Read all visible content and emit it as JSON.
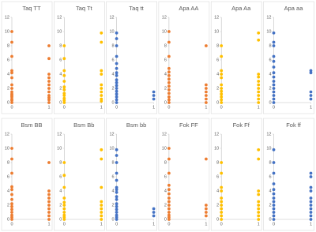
{
  "chart_data": [
    {
      "type": "scatter",
      "title": "Taq TT",
      "color": "#ed7d31",
      "xlim": [
        0,
        1
      ],
      "xticks": [
        0,
        1
      ],
      "ylim": [
        0,
        12
      ],
      "yticks": [
        0,
        2,
        4,
        6,
        8,
        10,
        12
      ],
      "x": [
        0,
        0,
        0,
        0,
        0,
        0,
        0,
        0,
        0,
        0,
        0,
        0,
        0,
        0,
        0,
        1,
        1,
        1,
        1,
        1,
        1,
        1,
        1,
        1,
        1,
        1,
        1
      ],
      "values": [
        10,
        8.5,
        6.5,
        4.5,
        4.2,
        3.5,
        2.5,
        2,
        1.5,
        1.2,
        1,
        0.8,
        0.5,
        0.3,
        0,
        8,
        6.2,
        4,
        3.5,
        3,
        2.5,
        2,
        1.5,
        1,
        0.7,
        0.4,
        0
      ]
    },
    {
      "type": "scatter",
      "title": "Taq Tt",
      "color": "#ffc000",
      "xlim": [
        0,
        1
      ],
      "xticks": [
        0,
        1
      ],
      "ylim": [
        0,
        12
      ],
      "yticks": [
        0,
        2,
        4,
        6,
        8,
        10,
        12
      ],
      "x": [
        0,
        0,
        0,
        0,
        0,
        0,
        0,
        0,
        0,
        0,
        0,
        0,
        1,
        1,
        1,
        1,
        1,
        1,
        1,
        1,
        1,
        1
      ],
      "values": [
        8,
        6.2,
        4.5,
        3.8,
        3,
        2.2,
        1.8,
        1.3,
        1,
        0.6,
        0.3,
        0,
        9.8,
        8.5,
        4.5,
        4,
        2.5,
        2,
        1.5,
        1,
        0.5,
        0.2
      ]
    },
    {
      "type": "scatter",
      "title": "Taq tt",
      "color": "#4472c4",
      "xlim": [
        0,
        1
      ],
      "xticks": [
        0,
        1
      ],
      "ylim": [
        0,
        12
      ],
      "yticks": [
        0,
        2,
        4,
        6,
        8,
        10,
        12
      ],
      "x": [
        0,
        0,
        0,
        0,
        0,
        0,
        0,
        0,
        0,
        0,
        0,
        0,
        0,
        0,
        0,
        0,
        0,
        1,
        1,
        1
      ],
      "values": [
        9.8,
        9,
        8,
        6.5,
        5.5,
        4.8,
        4.2,
        3.8,
        3.2,
        2.8,
        2.4,
        2,
        1.6,
        1.2,
        0.8,
        0.4,
        0,
        1.5,
        1,
        0.5
      ]
    },
    {
      "type": "scatter",
      "title": "Apa AA",
      "color": "#ed7d31",
      "xlim": [
        0,
        1
      ],
      "xticks": [
        0,
        1
      ],
      "ylim": [
        0,
        12
      ],
      "yticks": [
        0,
        2,
        4,
        6,
        8,
        10,
        12
      ],
      "x": [
        0,
        0,
        0,
        0,
        0,
        0,
        0,
        0,
        0,
        0,
        0,
        0,
        0,
        0,
        1,
        1,
        1,
        1,
        1,
        1,
        1
      ],
      "values": [
        10,
        8.5,
        6.5,
        4.8,
        4.3,
        3.8,
        3.3,
        2.8,
        2.3,
        1.8,
        1.3,
        0.8,
        0.4,
        0,
        8,
        2.5,
        2,
        1.5,
        1,
        0.5,
        0
      ]
    },
    {
      "type": "scatter",
      "title": "Apa Aa",
      "color": "#ffc000",
      "xlim": [
        0,
        1
      ],
      "xticks": [
        0,
        1
      ],
      "ylim": [
        0,
        12
      ],
      "yticks": [
        0,
        2,
        4,
        6,
        8,
        10,
        12
      ],
      "x": [
        0,
        0,
        0,
        0,
        0,
        0,
        0,
        0,
        0,
        0,
        0,
        0,
        1,
        1,
        1,
        1,
        1,
        1,
        1,
        1,
        1,
        1,
        1
      ],
      "values": [
        8,
        6.5,
        4.5,
        4,
        3.5,
        2.5,
        2,
        1.6,
        1.2,
        0.8,
        0.4,
        0,
        9.8,
        8.8,
        4,
        3.6,
        3,
        2.5,
        2,
        1.5,
        1,
        0.5,
        0
      ]
    },
    {
      "type": "scatter",
      "title": "Apa aa",
      "color": "#4472c4",
      "xlim": [
        0,
        1
      ],
      "xticks": [
        0,
        1
      ],
      "ylim": [
        0,
        12
      ],
      "yticks": [
        0,
        2,
        4,
        6,
        8,
        10,
        12
      ],
      "x": [
        0,
        0,
        0,
        0,
        0,
        0,
        0,
        0,
        0,
        0,
        0,
        0,
        0,
        0,
        0,
        1,
        1,
        1,
        1,
        1
      ],
      "values": [
        9.8,
        8.5,
        8,
        6.5,
        5.8,
        5,
        4.2,
        3.6,
        3,
        2.5,
        2,
        1.5,
        1,
        0.5,
        0,
        4.5,
        4.2,
        1.5,
        1,
        0.5
      ]
    },
    {
      "type": "scatter",
      "title": "Bsm BB",
      "color": "#ed7d31",
      "xlim": [
        0,
        1
      ],
      "xticks": [
        0,
        1
      ],
      "ylim": [
        0,
        12
      ],
      "yticks": [
        0,
        2,
        4,
        6,
        8,
        10,
        12
      ],
      "x": [
        0,
        0,
        0,
        0,
        0,
        0,
        0,
        0,
        0,
        0,
        0,
        0,
        0,
        0,
        1,
        1,
        1,
        1,
        1,
        1,
        1,
        1,
        1,
        1
      ],
      "values": [
        10,
        8.5,
        6.5,
        4.6,
        4.2,
        3.5,
        2.8,
        2.2,
        1.8,
        1.4,
        1,
        0.6,
        0.3,
        0,
        8,
        4,
        3.5,
        3,
        2.5,
        2,
        1.5,
        1,
        0.5,
        0
      ]
    },
    {
      "type": "scatter",
      "title": "Bsm Bb",
      "color": "#ffc000",
      "xlim": [
        0,
        1
      ],
      "xticks": [
        0,
        1
      ],
      "ylim": [
        0,
        12
      ],
      "yticks": [
        0,
        2,
        4,
        6,
        8,
        10,
        12
      ],
      "x": [
        0,
        0,
        0,
        0,
        0,
        0,
        0,
        0,
        0,
        0,
        0,
        1,
        1,
        1,
        1,
        1,
        1,
        1,
        1,
        1
      ],
      "values": [
        8,
        6.2,
        4.5,
        3,
        2.4,
        2,
        1.5,
        1,
        0.6,
        0.3,
        0,
        9.8,
        8.5,
        4.5,
        2.5,
        2,
        1.5,
        1,
        0.5,
        0
      ]
    },
    {
      "type": "scatter",
      "title": "Bsm bb",
      "color": "#4472c4",
      "xlim": [
        0,
        1
      ],
      "xticks": [
        0,
        1
      ],
      "ylim": [
        0,
        12
      ],
      "yticks": [
        0,
        2,
        4,
        6,
        8,
        10,
        12
      ],
      "x": [
        0,
        0,
        0,
        0,
        0,
        0,
        0,
        0,
        0,
        0,
        0,
        0,
        0,
        0,
        0,
        0,
        0,
        1,
        1,
        1
      ],
      "values": [
        9.8,
        9,
        8,
        6.5,
        5.5,
        4.5,
        4.2,
        3.8,
        3.2,
        2.8,
        2.2,
        1.8,
        1.4,
        1,
        0.6,
        0.3,
        0,
        1.5,
        1,
        0.5
      ]
    },
    {
      "type": "scatter",
      "title": "Fok FF",
      "color": "#ed7d31",
      "xlim": [
        0,
        1
      ],
      "xticks": [
        0,
        1
      ],
      "ylim": [
        0,
        12
      ],
      "yticks": [
        0,
        2,
        4,
        6,
        8,
        10,
        12
      ],
      "x": [
        0,
        0,
        0,
        0,
        0,
        0,
        0,
        0,
        0,
        0,
        0,
        0,
        0,
        0,
        1,
        1,
        1,
        1,
        1
      ],
      "values": [
        10,
        8.5,
        6.5,
        4.8,
        4.2,
        3.6,
        3,
        2.5,
        2,
        1.5,
        1,
        0.6,
        0.3,
        0,
        8.5,
        2,
        1.5,
        1,
        0.5
      ]
    },
    {
      "type": "scatter",
      "title": "Fok Ff",
      "color": "#ffc000",
      "xlim": [
        0,
        1
      ],
      "xticks": [
        0,
        1
      ],
      "ylim": [
        0,
        12
      ],
      "yticks": [
        0,
        2,
        4,
        6,
        8,
        10,
        12
      ],
      "x": [
        0,
        0,
        0,
        0,
        0,
        0,
        0,
        0,
        0,
        0,
        0,
        1,
        1,
        1,
        1,
        1,
        1,
        1,
        1,
        1,
        1
      ],
      "values": [
        8,
        6.5,
        4.5,
        4,
        3,
        2.5,
        2,
        1.5,
        1,
        0.5,
        0,
        9.8,
        8.5,
        4,
        3.5,
        2.5,
        2,
        1.5,
        1,
        0.5,
        0
      ]
    },
    {
      "type": "scatter",
      "title": "Fok ff",
      "color": "#4472c4",
      "xlim": [
        0,
        1
      ],
      "xticks": [
        0,
        1
      ],
      "ylim": [
        0,
        12
      ],
      "yticks": [
        0,
        2,
        4,
        6,
        8,
        10,
        12
      ],
      "x": [
        0,
        0,
        0,
        0,
        0,
        0,
        0,
        0,
        0,
        0,
        0,
        0,
        0,
        1,
        1,
        1,
        1,
        1,
        1,
        1,
        1,
        1,
        1,
        1
      ],
      "values": [
        9.8,
        8,
        6.5,
        5,
        4.2,
        3.6,
        3,
        2.5,
        2,
        1.5,
        1,
        0.5,
        0,
        6.5,
        6,
        4.5,
        4,
        3,
        2.5,
        2,
        1.5,
        1,
        0.5,
        0
      ]
    }
  ]
}
